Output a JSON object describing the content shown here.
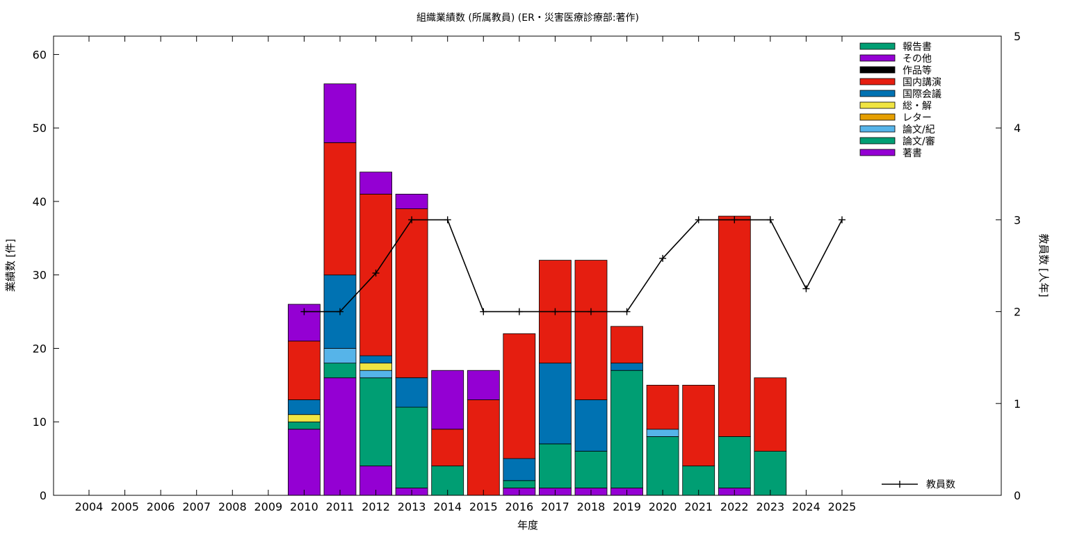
{
  "chart_data": {
    "type": "bar",
    "stacked": true,
    "title": "組織業績数 (所属教員) (ER・災害医療診療部:著作)",
    "xlabel": "年度",
    "ylabel": "業績数 [件]",
    "y2label": "教員数 [人年]",
    "ylim": [
      0,
      62.5
    ],
    "y2lim": [
      0,
      5
    ],
    "yticks": [
      0,
      10,
      20,
      30,
      40,
      50,
      60
    ],
    "y2ticks": [
      0,
      1,
      2,
      3,
      4,
      5
    ],
    "grid": false,
    "legend_position": "top-right",
    "categories": [
      "2004",
      "2005",
      "2006",
      "2007",
      "2008",
      "2009",
      "2010",
      "2011",
      "2012",
      "2013",
      "2014",
      "2015",
      "2016",
      "2017",
      "2018",
      "2019",
      "2020",
      "2021",
      "2022",
      "2023",
      "2024",
      "2025"
    ],
    "series": [
      {
        "name": "著書",
        "color": "#9400d3",
        "values": [
          0,
          0,
          0,
          0,
          0,
          0,
          9,
          16,
          4,
          1,
          0,
          0,
          1,
          1,
          1,
          1,
          0,
          0,
          1,
          0,
          0,
          0
        ]
      },
      {
        "name": "論文/審",
        "color": "#009e73",
        "values": [
          0,
          0,
          0,
          0,
          0,
          0,
          1,
          2,
          12,
          11,
          4,
          0,
          1,
          6,
          5,
          16,
          8,
          4,
          7,
          6,
          0,
          0
        ]
      },
      {
        "name": "論文/紀",
        "color": "#56b4e9",
        "values": [
          0,
          0,
          0,
          0,
          0,
          0,
          0,
          2,
          1,
          0,
          0,
          0,
          0,
          0,
          0,
          0,
          1,
          0,
          0,
          0,
          0,
          0
        ]
      },
      {
        "name": "レター",
        "color": "#e69f00",
        "values": [
          0,
          0,
          0,
          0,
          0,
          0,
          0,
          0,
          0,
          0,
          0,
          0,
          0,
          0,
          0,
          0,
          0,
          0,
          0,
          0,
          0,
          0
        ]
      },
      {
        "name": "総・解",
        "color": "#f0e442",
        "values": [
          0,
          0,
          0,
          0,
          0,
          0,
          1,
          0,
          1,
          0,
          0,
          0,
          0,
          0,
          0,
          0,
          0,
          0,
          0,
          0,
          0,
          0
        ]
      },
      {
        "name": "国際会議",
        "color": "#0072b2",
        "values": [
          0,
          0,
          0,
          0,
          0,
          0,
          2,
          10,
          1,
          4,
          0,
          0,
          3,
          11,
          7,
          1,
          0,
          0,
          0,
          0,
          0,
          0
        ]
      },
      {
        "name": "国内講演",
        "color": "#e51e10",
        "values": [
          0,
          0,
          0,
          0,
          0,
          0,
          8,
          18,
          22,
          23,
          5,
          13,
          17,
          14,
          19,
          5,
          6,
          11,
          30,
          10,
          0,
          0
        ]
      },
      {
        "name": "作品等",
        "color": "#000000",
        "values": [
          0,
          0,
          0,
          0,
          0,
          0,
          0,
          0,
          0,
          0,
          0,
          0,
          0,
          0,
          0,
          0,
          0,
          0,
          0,
          0,
          0,
          0
        ]
      },
      {
        "name": "その他",
        "color": "#9400d3",
        "values": [
          0,
          0,
          0,
          0,
          0,
          0,
          5,
          8,
          3,
          2,
          8,
          4,
          0,
          0,
          0,
          0,
          0,
          0,
          0,
          0,
          0,
          0
        ]
      },
      {
        "name": "報告書",
        "color": "#009e73",
        "values": [
          0,
          0,
          0,
          0,
          0,
          0,
          0,
          0,
          0,
          0,
          0,
          0,
          0,
          0,
          0,
          0,
          0,
          0,
          0,
          0,
          0,
          0
        ]
      }
    ],
    "legend_order": [
      "報告書",
      "その他",
      "作品等",
      "国内講演",
      "国際会議",
      "総・解",
      "レター",
      "論文/紀",
      "論文/審",
      "著書"
    ],
    "line_series": {
      "name": "教員数",
      "axis": "y2",
      "color": "#000000",
      "x": [
        "2010",
        "2011",
        "2012",
        "2013",
        "2014",
        "2015",
        "2016",
        "2017",
        "2018",
        "2019",
        "2020",
        "2021",
        "2022",
        "2023",
        "2024",
        "2025"
      ],
      "values": [
        2,
        2,
        2.42,
        3,
        3,
        2,
        2,
        2,
        2,
        2,
        2.58,
        3,
        3,
        3,
        2.25,
        3
      ]
    }
  }
}
